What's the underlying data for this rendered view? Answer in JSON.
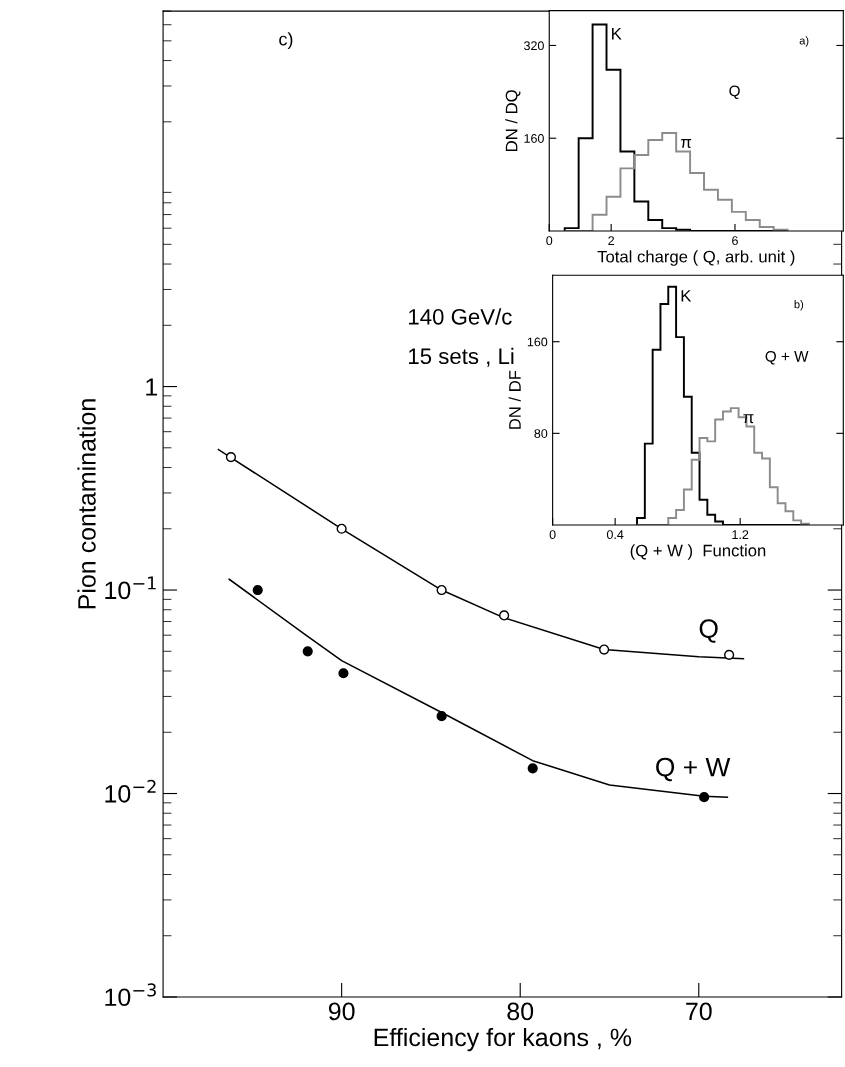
{
  "chart_data": [
    {
      "type": "scatter",
      "xlabel": "Efficiency for kaons , %",
      "ylabel": "Pion contamination",
      "log": "y",
      "xlim": [
        100,
        62
      ],
      "xticks": [
        90,
        80,
        70
      ],
      "ylim": [
        0.001,
        70
      ],
      "yticks": [
        {
          "value": 0.001,
          "label": "10$^{−3}$"
        },
        {
          "value": 0.01,
          "label": "10$^{−2}$"
        },
        {
          "value": 0.1,
          "label": "10$^{−1}$"
        },
        {
          "value": 1,
          "label": "1"
        }
      ],
      "grid": false,
      "annotations": [
        "c)",
        "140 GeV/c",
        "15 sets , Li"
      ],
      "series": [
        {
          "color": "#ffffff",
          "marker": "circle",
          "x": [
            96.2,
            90,
            84.4,
            80.9,
            75.3,
            68.3
          ],
          "values": [
            0.45,
            0.2,
            0.1,
            0.075,
            0.051,
            0.048
          ]
        },
        {
          "color": "#000000",
          "marker": "circle",
          "x": [
            94.7,
            91.9,
            89.9,
            84.4,
            79.3,
            69.7
          ],
          "values": [
            0.1,
            0.05,
            0.039,
            0.024,
            0.0133,
            0.0096
          ]
        },
        {
          "type": "line",
          "name": "Q",
          "marker": "none",
          "color": "#000000",
          "x": [
            96.9,
            90,
            84.4,
            80.9,
            75.3,
            70,
            67.5
          ],
          "values": [
            0.49,
            0.2,
            0.1,
            0.073,
            0.051,
            0.047,
            0.046
          ]
        },
        {
          "type": "line",
          "name": "Q + W",
          "marker": "none",
          "color": "#000000",
          "x": [
            96.3,
            92,
            90,
            84.4,
            79.3,
            75,
            69.7,
            68.4
          ],
          "values": [
            0.113,
            0.06,
            0.045,
            0.025,
            0.0145,
            0.011,
            0.0097,
            0.0096
          ]
        }
      ]
    },
    {
      "type": "histogram",
      "xlabel": "Total charge ( Q, arb. unit )",
      "ylabel": "DN / DQ",
      "xlim": [
        0,
        9.5
      ],
      "xticks": [
        0,
        2,
        6
      ],
      "ylim": [
        0,
        380
      ],
      "yticks": [
        160,
        320
      ],
      "grid": false,
      "annotations": [
        "a)",
        "Q"
      ],
      "bins": [
        0.5,
        0.95,
        1.4,
        1.85,
        2.3,
        2.75,
        3.2,
        3.65,
        4.1,
        4.55,
        5.0,
        5.45,
        5.9,
        6.35,
        6.8,
        7.25,
        7.7
      ],
      "series": [
        {
          "name": "K",
          "color": "#000000",
          "values": [
            5,
            160,
            356,
            278,
            137,
            51,
            19,
            5,
            2,
            0,
            0,
            0,
            0,
            0,
            0,
            0
          ]
        },
        {
          "name": "π",
          "color": "#8c8c8c",
          "values": [
            0,
            0,
            28,
            59,
            108,
            131,
            157,
            169,
            137,
            100,
            71,
            54,
            33,
            19,
            7,
            2
          ]
        }
      ]
    },
    {
      "type": "histogram",
      "xlabel": "(Q + W )  Function",
      "ylabel": "DN / DF",
      "xlim": [
        0,
        1.86
      ],
      "xticks": [
        0,
        0.4,
        1.2
      ],
      "ylim": [
        0,
        218
      ],
      "yticks": [
        80,
        160
      ],
      "grid": false,
      "annotations": [
        "b)",
        "Q + W"
      ],
      "bins": [
        0.54,
        0.59,
        0.64,
        0.69,
        0.74,
        0.79,
        0.84,
        0.89,
        0.94,
        0.99,
        1.04,
        1.09,
        1.14,
        1.19,
        1.24,
        1.29,
        1.34,
        1.39,
        1.44,
        1.49,
        1.54,
        1.59,
        1.64
      ],
      "series": [
        {
          "name": "K",
          "color": "#000000",
          "values": [
            6,
            71,
            153,
            193,
            208,
            164,
            112,
            63,
            22,
            9,
            3,
            0,
            0,
            0,
            0,
            0,
            0,
            0,
            0,
            0,
            0,
            0
          ]
        },
        {
          "name": "π",
          "color": "#8c8c8c",
          "values": [
            0,
            0,
            0,
            0,
            6,
            13,
            31,
            57,
            76,
            73,
            92,
            99,
            102,
            94,
            86,
            63,
            58,
            33,
            19,
            12,
            4,
            1
          ]
        }
      ]
    }
  ]
}
